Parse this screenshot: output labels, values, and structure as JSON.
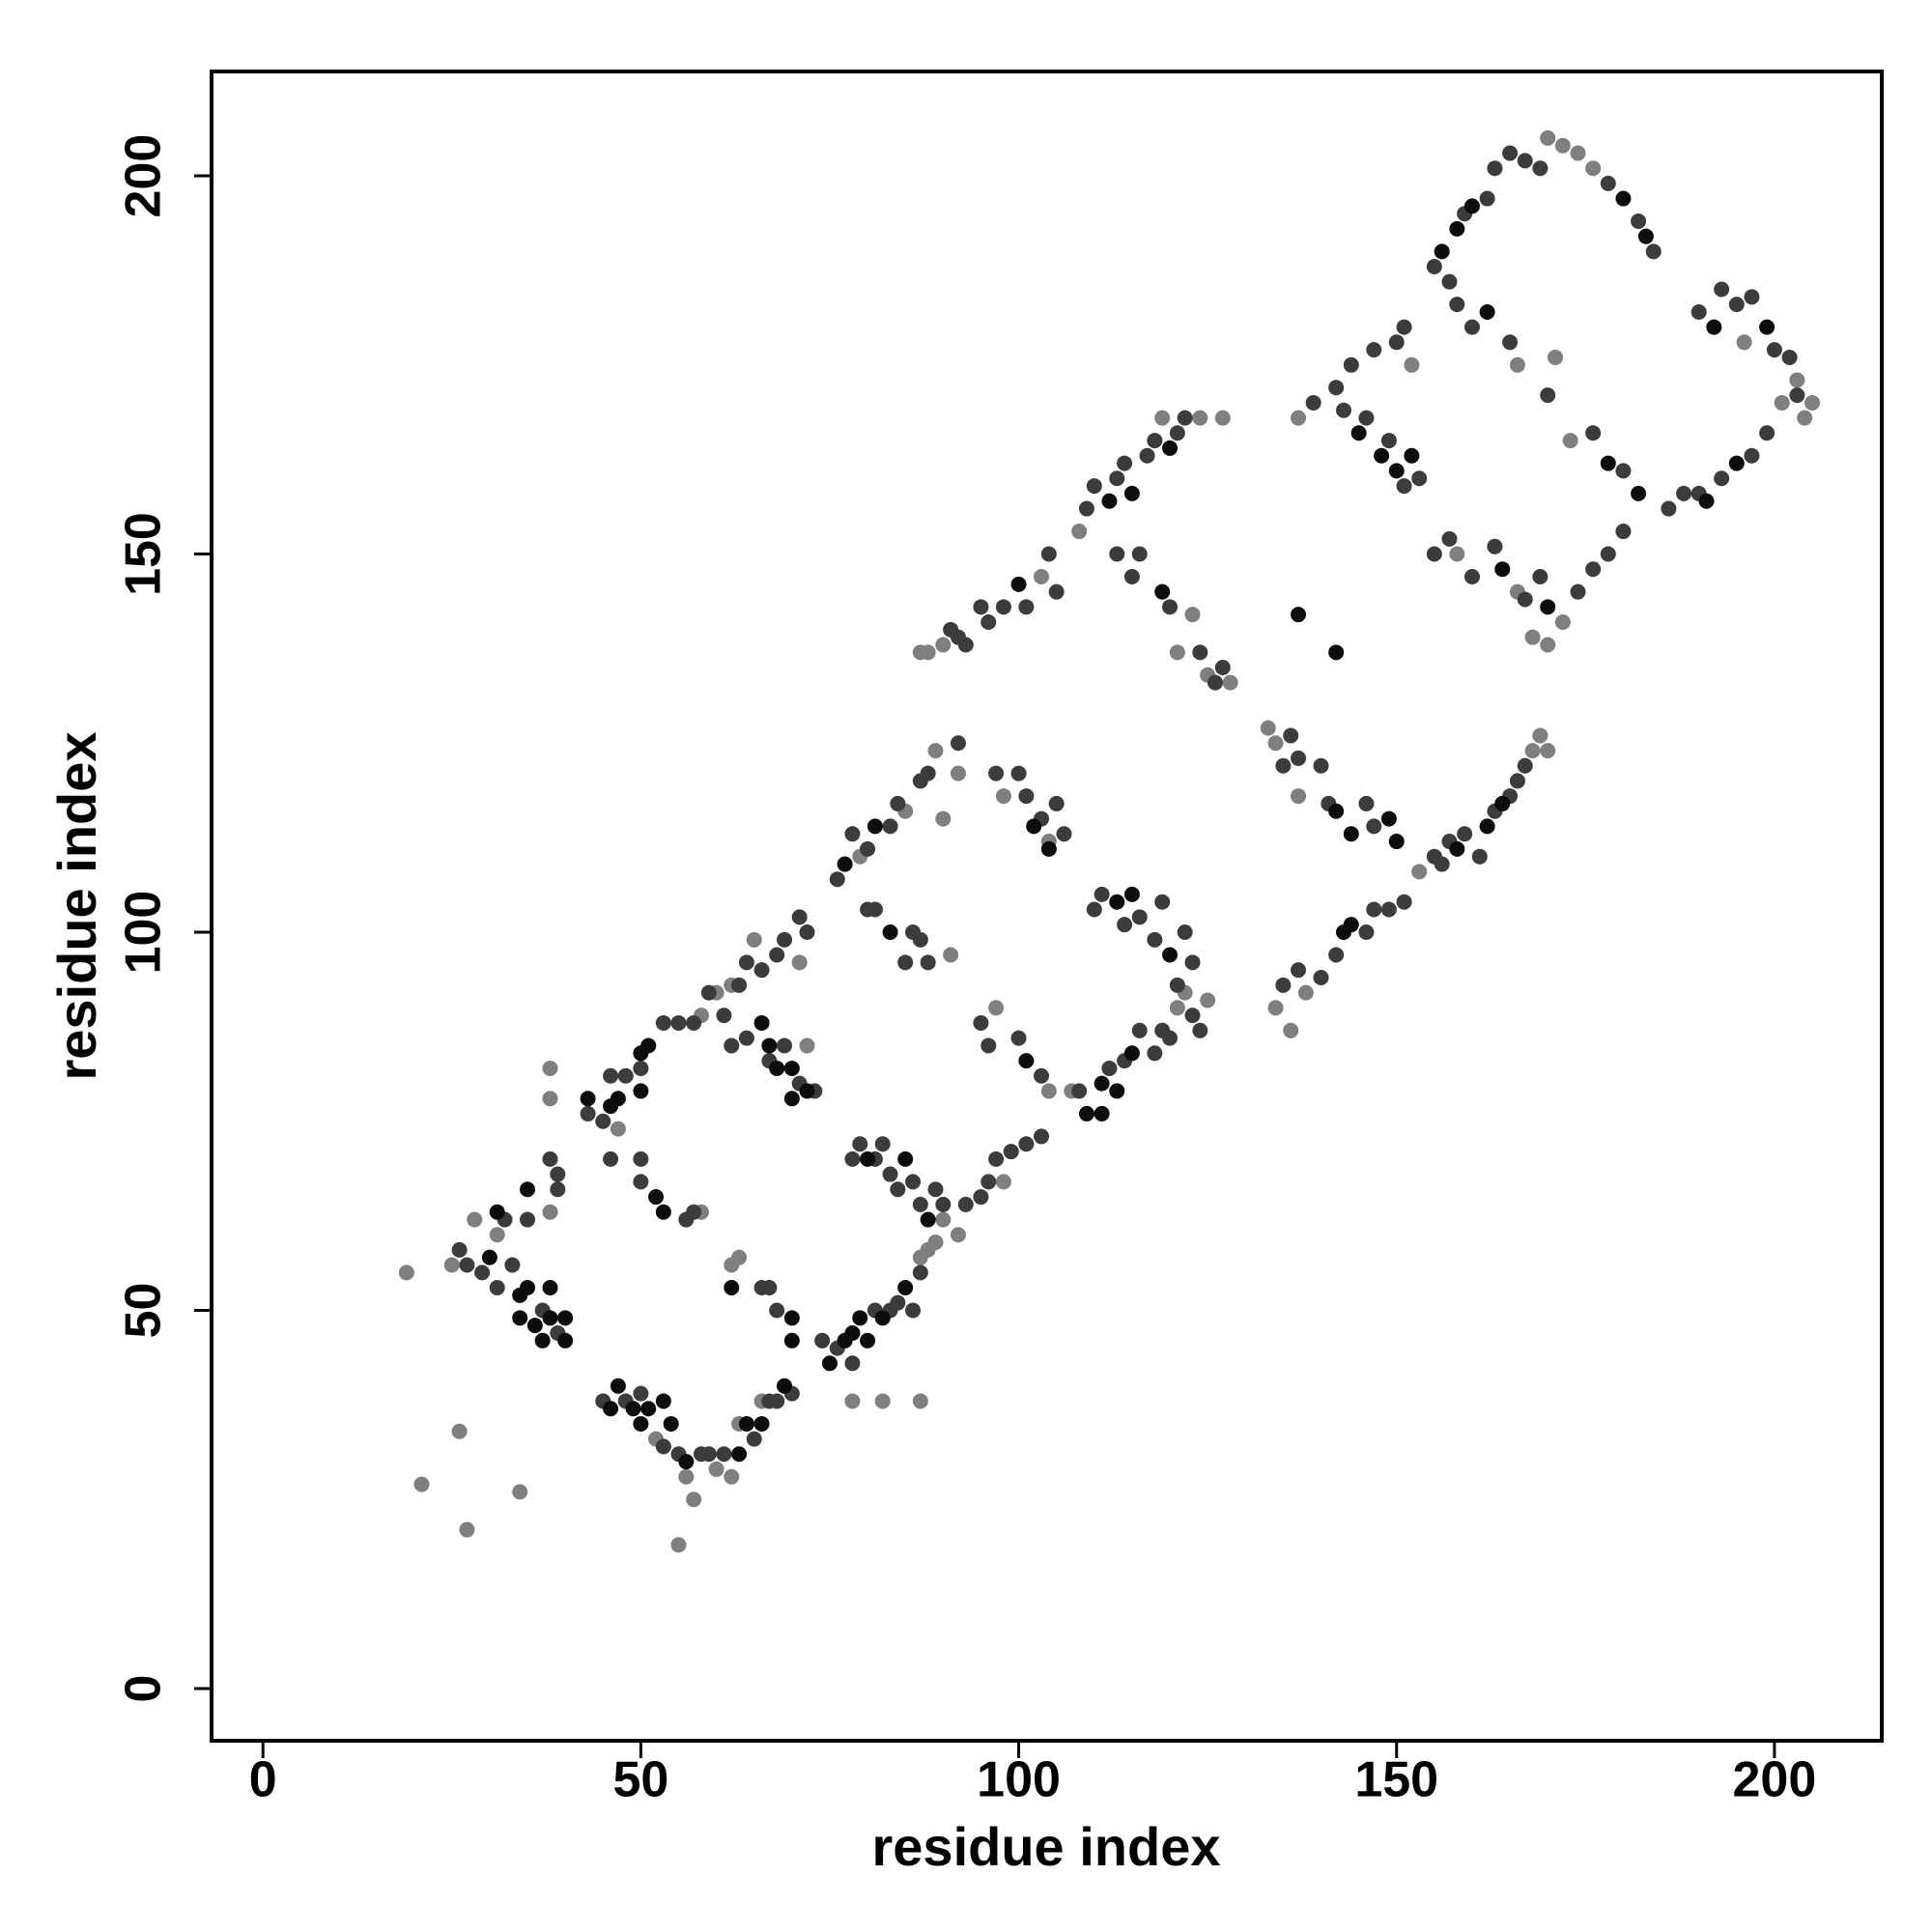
{
  "chart_data": {
    "type": "scatter",
    "x_label": "residue index",
    "y_label": "residue index",
    "xlim": [
      -6.8,
      214.2
    ],
    "ylim": [
      -6.9,
      213.8
    ],
    "xticks": [
      0,
      50,
      100,
      150,
      200
    ],
    "yticks": [
      0,
      50,
      100,
      150,
      200
    ],
    "grid": false,
    "series": [
      {
        "color": "#7f7f7f",
        "x": [
          19,
          21,
          26,
          27,
          34,
          55,
          25,
          28,
          31,
          38,
          38,
          38,
          47,
          58,
          60,
          62,
          65,
          71,
          79,
          85,
          89,
          92,
          90,
          52,
          56,
          57,
          60,
          62,
          63,
          66,
          58,
          62,
          63,
          72,
          87,
          88,
          89,
          90,
          92,
          98,
          87,
          82,
          78,
          91,
          97,
          104,
          107,
          121,
          122,
          125,
          104,
          98,
          88,
          90,
          87,
          103,
          108,
          124,
          127,
          119,
          121,
          123,
          125,
          128,
          133,
          134,
          137,
          136,
          134,
          138,
          153,
          168,
          169,
          170,
          137,
          152,
          158,
          166,
          168,
          170,
          172,
          170,
          172,
          174,
          176,
          166,
          173,
          171,
          201,
          205,
          203,
          204,
          196
        ],
        "values": [
          55,
          27,
          34,
          21,
          26,
          19,
          56,
          62,
          60,
          82,
          78,
          63,
          74,
          89,
          92,
          93,
          99,
          96,
          110,
          116,
          124,
          121,
          115,
          33,
          28,
          25,
          29,
          28,
          35,
          38,
          63,
          56,
          57,
          85,
          57,
          58,
          59,
          62,
          60,
          67,
          38,
          38,
          38,
          97,
          90,
          79,
          79,
          90,
          92,
          91,
          112,
          118,
          137,
          138,
          137,
          147,
          153,
          168,
          168,
          168,
          137,
          142,
          134,
          133,
          127,
          125,
          118,
          87,
          90,
          92,
          108,
          124,
          126,
          124,
          168,
          175,
          150,
          145,
          139,
          138,
          141,
          205,
          204,
          203,
          201,
          175,
          165,
          176,
          170,
          170,
          173,
          168,
          178
        ]
      },
      {
        "color": "#3c3c3c",
        "x": [
          26,
          27,
          29,
          31,
          32,
          33,
          35,
          37,
          39,
          39,
          38,
          39,
          43,
          45,
          46,
          48,
          50,
          53,
          55,
          57,
          59,
          61,
          63,
          64,
          66,
          68,
          69,
          71,
          72,
          76,
          78,
          80,
          83,
          84,
          87,
          88,
          92,
          45,
          48,
          50,
          53,
          55,
          58,
          59,
          61,
          65,
          67,
          68,
          70,
          46,
          50,
          50,
          56,
          57,
          62,
          64,
          67,
          69,
          71,
          73,
          66,
          67,
          68,
          74,
          76,
          78,
          81,
          83,
          84,
          86,
          87,
          93,
          95,
          96,
          97,
          99,
          101,
          103,
          78,
          79,
          81,
          82,
          83,
          84,
          86,
          87,
          89,
          90,
          80,
          81,
          85,
          87,
          88,
          86,
          95,
          96,
          100,
          103,
          108,
          112,
          114,
          116,
          118,
          119,
          120,
          123,
          124,
          97,
          100,
          101,
          103,
          105,
          106,
          110,
          111,
          114,
          116,
          118,
          119,
          121,
          122,
          123,
          91,
          92,
          93,
          95,
          96,
          98,
          101,
          104,
          105,
          109,
          110,
          113,
          114,
          117,
          118,
          121,
          122,
          113,
          115,
          116,
          120,
          124,
          126,
          127,
          135,
          136,
          137,
          140,
          141,
          146,
          147,
          135,
          137,
          140,
          142,
          146,
          147,
          149,
          151,
          155,
          156,
          157,
          159,
          161,
          163,
          165,
          166,
          167,
          139,
          142,
          143,
          144,
          146,
          147,
          149,
          151,
          153,
          150,
          151,
          155,
          157,
          160,
          163,
          167,
          169,
          174,
          176,
          178,
          180,
          155,
          157,
          159,
          162,
          163,
          165,
          167,
          169,
          178,
          182,
          184,
          158,
          160,
          165,
          170,
          176,
          180,
          186,
          188,
          190,
          193,
          197,
          199,
          190,
          193,
          195,
          197,
          200,
          202,
          203
        ],
        "values": [
          58,
          56,
          55,
          53,
          62,
          56,
          62,
          50,
          47,
          68,
          70,
          66,
          76,
          75,
          81,
          81,
          82,
          88,
          88,
          88,
          92,
          89,
          93,
          96,
          95,
          97,
          99,
          102,
          100,
          107,
          113,
          111,
          114,
          117,
          120,
          121,
          125,
          38,
          38,
          39,
          32,
          31,
          31,
          31,
          31,
          33,
          38,
          38,
          39,
          70,
          70,
          67,
          62,
          63,
          85,
          86,
          83,
          85,
          80,
          79,
          53,
          53,
          50,
          46,
          45,
          43,
          50,
          50,
          51,
          50,
          55,
          64,
          65,
          67,
          70,
          71,
          72,
          73,
          70,
          72,
          70,
          72,
          68,
          66,
          67,
          64,
          66,
          64,
          103,
          103,
          96,
          99,
          96,
          100,
          88,
          85,
          86,
          81,
          79,
          82,
          83,
          87,
          84,
          87,
          86,
          89,
          87,
          121,
          121,
          118,
          115,
          117,
          113,
          103,
          105,
          101,
          102,
          99,
          104,
          93,
          100,
          96,
          140,
          139,
          138,
          143,
          141,
          143,
          143,
          150,
          145,
          156,
          159,
          160,
          162,
          163,
          165,
          166,
          168,
          150,
          147,
          150,
          143,
          137,
          133,
          135,
          122,
          126,
          123,
          122,
          117,
          117,
          114,
          93,
          95,
          94,
          97,
          100,
          103,
          103,
          104,
          110,
          109,
          112,
          113,
          110,
          116,
          118,
          120,
          122,
          170,
          172,
          169,
          175,
          168,
          177,
          165,
          159,
          160,
          178,
          180,
          150,
          152,
          147,
          151,
          144,
          147,
          145,
          148,
          150,
          153,
          188,
          186,
          195,
          197,
          201,
          203,
          202,
          201,
          199,
          194,
          190,
          183,
          180,
          178,
          171,
          166,
          161,
          156,
          158,
          158,
          160,
          163,
          166,
          182,
          185,
          183,
          184,
          177,
          176,
          171
        ]
      },
      {
        "color": "#0d0d0d",
        "x": [
          30,
          31,
          34,
          34,
          35,
          35,
          36,
          37,
          38,
          38,
          40,
          40,
          43,
          46,
          47,
          50,
          51,
          50,
          77,
          81,
          46,
          47,
          49,
          50,
          51,
          53,
          54,
          56,
          63,
          64,
          66,
          69,
          52,
          53,
          66,
          67,
          68,
          70,
          70,
          72,
          62,
          70,
          70,
          75,
          77,
          78,
          79,
          80,
          82,
          85,
          80,
          85,
          88,
          83,
          101,
          109,
          111,
          111,
          113,
          115,
          102,
          104,
          113,
          115,
          120,
          100,
          112,
          115,
          120,
          119,
          137,
          142,
          142,
          144,
          149,
          150,
          143,
          144,
          158,
          162,
          164,
          145,
          148,
          150,
          152,
          164,
          170,
          156,
          158,
          160,
          180,
          183,
          162,
          178,
          182,
          191,
          195,
          192,
          199
        ],
        "values": [
          57,
          63,
          52,
          49,
          66,
          53,
          48,
          46,
          49,
          53,
          49,
          46,
          78,
          77,
          78,
          84,
          85,
          79,
          109,
          114,
          37,
          40,
          37,
          35,
          37,
          38,
          35,
          30,
          31,
          35,
          35,
          40,
          65,
          63,
          88,
          85,
          82,
          82,
          78,
          79,
          53,
          49,
          46,
          43,
          46,
          47,
          49,
          46,
          49,
          53,
          70,
          70,
          62,
          100,
          83,
          76,
          76,
          80,
          79,
          84,
          114,
          111,
          104,
          105,
          97,
          146,
          157,
          158,
          164,
          145,
          142,
          137,
          116,
          113,
          115,
          112,
          100,
          101,
          111,
          114,
          117,
          166,
          163,
          161,
          163,
          148,
          143,
          190,
          193,
          196,
          197,
          192,
          182,
          162,
          158,
          157,
          162,
          180,
          180
        ]
      }
    ]
  }
}
